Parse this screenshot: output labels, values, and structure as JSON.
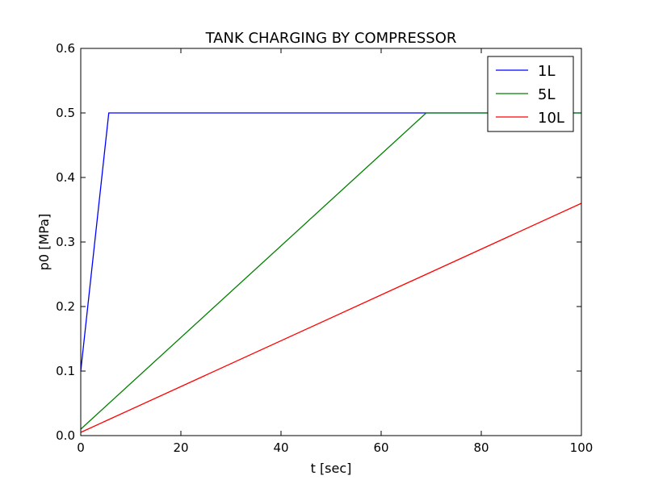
{
  "chart_data": {
    "type": "line",
    "title": "TANK CHARGING BY COMPRESSOR",
    "xlabel": "t [sec]",
    "ylabel": "p0 [MPa]",
    "xlim": [
      0,
      100
    ],
    "ylim": [
      0,
      0.6
    ],
    "xticks": [
      0,
      20,
      40,
      60,
      80,
      100
    ],
    "xtick_labels": [
      "0",
      "20",
      "40",
      "60",
      "80",
      "100"
    ],
    "yticks": [
      0.0,
      0.1,
      0.2,
      0.3,
      0.4,
      0.5,
      0.6
    ],
    "ytick_labels": [
      "0.0",
      "0.1",
      "0.2",
      "0.3",
      "0.4",
      "0.5",
      "0.6"
    ],
    "grid": false,
    "legend_position": "top-right",
    "series": [
      {
        "name": "1L",
        "color": "#0000ff",
        "x": [
          0,
          5.6,
          100
        ],
        "y": [
          0.1,
          0.5,
          0.5
        ]
      },
      {
        "name": "5L",
        "color": "#008000",
        "x": [
          0,
          69,
          100
        ],
        "y": [
          0.01,
          0.5,
          0.5
        ]
      },
      {
        "name": "10L",
        "color": "#ff0000",
        "x": [
          0,
          100
        ],
        "y": [
          0.005,
          0.36
        ]
      }
    ]
  }
}
